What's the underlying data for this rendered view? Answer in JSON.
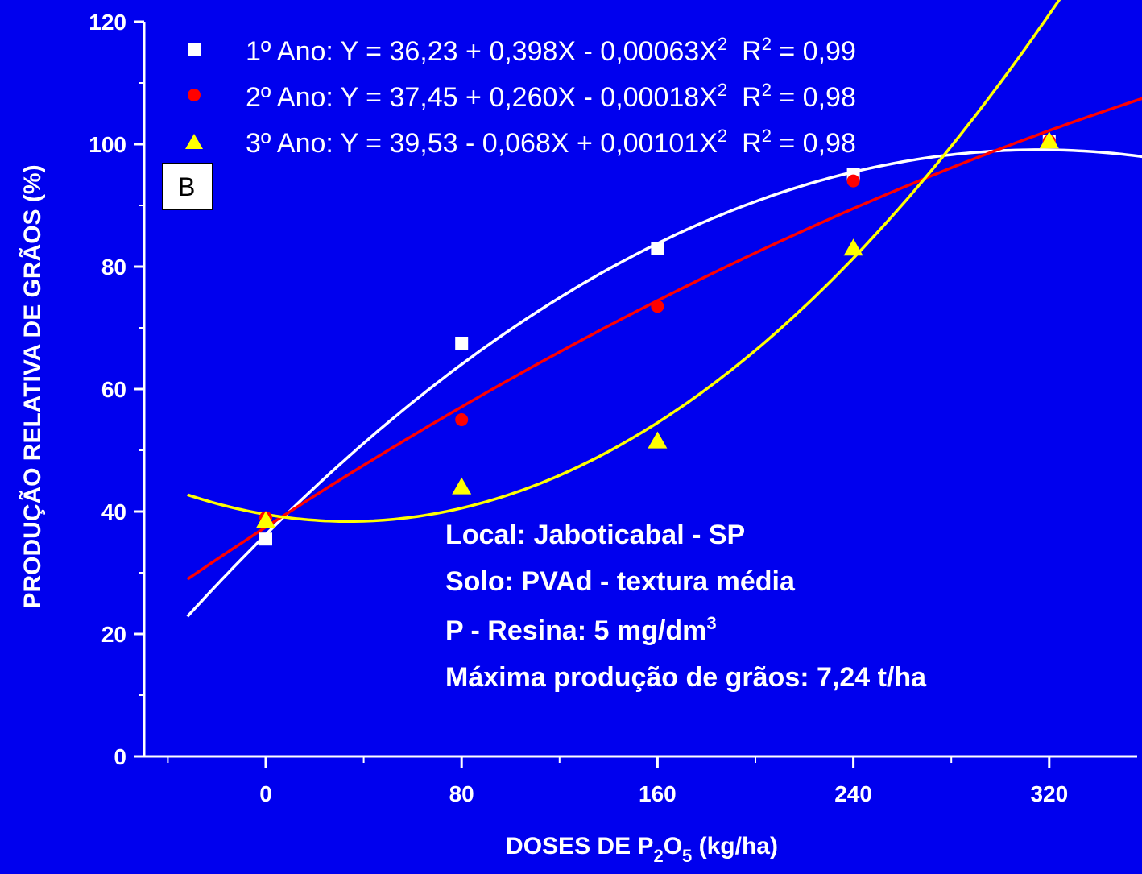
{
  "chart_data": {
    "type": "scatter",
    "panel_label": "B",
    "xlabel": {
      "prefix": "DOSES DE P",
      "sub1": "2",
      "mid": "O",
      "sub2": "5",
      "suffix": " (kg/ha)"
    },
    "ylabel": "PRODUÇÃO RELATIVA DE GRÃOS (%)",
    "xlim": [
      -38,
      358
    ],
    "ylim": [
      0,
      120
    ],
    "xticks": [
      0,
      80,
      160,
      240,
      320
    ],
    "yticks": [
      0,
      20,
      40,
      60,
      80,
      100,
      120
    ],
    "grid": false,
    "legend_position": "top-left",
    "x": [
      0,
      80,
      160,
      240,
      320
    ],
    "series": [
      {
        "name": "1º Ano",
        "marker": "square",
        "color": "#ffffff",
        "equation": {
          "before": "1º Ano: Y = 36,23 + 0,398X - 0,00063X",
          "exp": "2",
          "r_label": "R",
          "r_exp": "2",
          "r_value": " = 0,99"
        },
        "values": [
          35.5,
          67.5,
          83.0,
          95.0,
          100.5
        ],
        "fit": [
          36.23,
          0.398,
          -0.00063
        ],
        "fit_range": [
          -32,
          358
        ]
      },
      {
        "name": "2º Ano",
        "marker": "circle",
        "color": "#ff0000",
        "equation": {
          "before": "2º Ano: Y = 37,45 + 0,260X - 0,00018X",
          "exp": "2",
          "r_label": "R",
          "r_exp": "2",
          "r_value": " = 0,98"
        },
        "values": [
          39.0,
          55.0,
          73.5,
          94.0,
          100.5
        ],
        "fit": [
          37.45,
          0.26,
          -0.00018
        ],
        "fit_range": [
          -32,
          358
        ]
      },
      {
        "name": "3º Ano",
        "marker": "triangle",
        "color": "#ffff00",
        "equation": {
          "before": "3º Ano: Y = 39,53 - 0,068X + 0,00101X",
          "exp": "2",
          "r_label": "R",
          "r_exp": "2",
          "r_value": " = 0,98"
        },
        "values": [
          38.5,
          44.0,
          51.5,
          83.0,
          100.5
        ],
        "fit": [
          39.53,
          -0.068,
          0.00101
        ],
        "fit_range": [
          -32,
          358
        ]
      }
    ],
    "annotations": [
      {
        "text": "Local: Jaboticabal - SP"
      },
      {
        "text": "Solo: PVAd - textura média"
      },
      {
        "text": "P - Resina: 5 mg/dm",
        "sup": "3"
      },
      {
        "text": "Máxima produção de grãos: 7,24 t/ha"
      }
    ]
  }
}
